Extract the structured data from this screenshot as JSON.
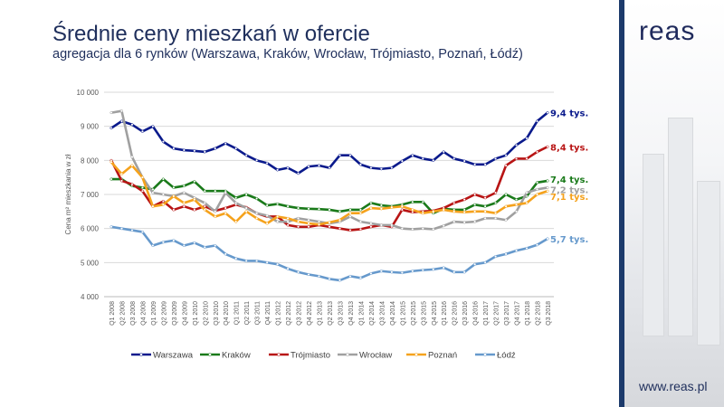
{
  "title": "Średnie ceny mieszkań w ofercie",
  "subtitle": "agregacja dla 6 rynków (Warszawa, Kraków, Wrocław, Trójmiasto, Poznań, Łódź)",
  "logo": "reas",
  "url": "www.reas.pl",
  "chart_data": {
    "type": "line",
    "ylabel": "Cena m² mieszkania w zł",
    "ylim": [
      4000,
      10000
    ],
    "yticks": [
      4000,
      5000,
      6000,
      7000,
      8000,
      9000,
      10000
    ],
    "ytick_labels": [
      "4 000",
      "5 000",
      "6 000",
      "7 000",
      "8 000",
      "9 000",
      "10 000"
    ],
    "grid": true,
    "legend": "bottom",
    "categories": [
      "Q1 2008",
      "Q2 2008",
      "Q3 2008",
      "Q4 2008",
      "Q1 2009",
      "Q2 2009",
      "Q3 2009",
      "Q4 2009",
      "Q1 2010",
      "Q2 2010",
      "Q3 2010",
      "Q4 2010",
      "Q1 2011",
      "Q2 2011",
      "Q3 2011",
      "Q4 2011",
      "Q1 2012",
      "Q2 2012",
      "Q3 2012",
      "Q4 2012",
      "Q1 2013",
      "Q2 2013",
      "Q3 2013",
      "Q4 2013",
      "Q1 2014",
      "Q2 2014",
      "Q3 2014",
      "Q4 2014",
      "Q1 2015",
      "Q2 2015",
      "Q3 2015",
      "Q4 2015",
      "Q1 2016",
      "Q2 2016",
      "Q3 2016",
      "Q4 2016",
      "Q1 2017",
      "Q2 2017",
      "Q3 2017",
      "Q4 2017",
      "Q1 2018",
      "Q2 2018",
      "Q3 2018"
    ],
    "series": [
      {
        "name": "Warszawa",
        "color": "#0a1a8c",
        "end_label": "9,4 tys.",
        "values": [
          8950,
          9150,
          9050,
          8850,
          9000,
          8550,
          8350,
          8300,
          8280,
          8250,
          8350,
          8500,
          8350,
          8150,
          8000,
          7920,
          7720,
          7780,
          7620,
          7820,
          7850,
          7780,
          8150,
          8150,
          7880,
          7780,
          7750,
          7780,
          7980,
          8150,
          8050,
          8000,
          8250,
          8050,
          7980,
          7880,
          7880,
          8050,
          8150,
          8450,
          8650,
          9150,
          9400
        ]
      },
      {
        "name": "Kraków",
        "color": "#1a7a1a",
        "end_label": "7,4 tys.",
        "values": [
          7450,
          7450,
          7250,
          7200,
          7150,
          7450,
          7200,
          7250,
          7380,
          7100,
          7100,
          7100,
          6900,
          7000,
          6880,
          6680,
          6720,
          6650,
          6600,
          6580,
          6570,
          6550,
          6500,
          6550,
          6550,
          6750,
          6680,
          6650,
          6700,
          6780,
          6780,
          6450,
          6580,
          6550,
          6550,
          6700,
          6650,
          6750,
          7000,
          6850,
          6950,
          7350,
          7400
        ]
      },
      {
        "name": "Trójmiasto",
        "color": "#b81414",
        "end_label": "8,4 tys.",
        "values": [
          8000,
          7400,
          7300,
          7100,
          6650,
          6800,
          6550,
          6650,
          6550,
          6650,
          6520,
          6600,
          6700,
          6620,
          6450,
          6350,
          6350,
          6100,
          6050,
          6050,
          6100,
          6050,
          6000,
          5950,
          5980,
          6050,
          6100,
          6050,
          6550,
          6480,
          6500,
          6520,
          6600,
          6750,
          6850,
          7000,
          6900,
          7050,
          7850,
          8050,
          8050,
          8250,
          8400
        ]
      },
      {
        "name": "Wrocław",
        "color": "#a0a0a0",
        "end_label": "7,2 tys.",
        "values": [
          9400,
          9450,
          8100,
          7500,
          7050,
          7000,
          6950,
          7050,
          6900,
          6750,
          6500,
          7050,
          6750,
          6600,
          6450,
          6380,
          6200,
          6200,
          6300,
          6250,
          6200,
          6150,
          6200,
          6350,
          6200,
          6150,
          6100,
          6100,
          6000,
          5980,
          6000,
          5980,
          6080,
          6200,
          6180,
          6200,
          6300,
          6300,
          6250,
          6500,
          7050,
          7150,
          7200
        ]
      },
      {
        "name": "Poznań",
        "color": "#f5a21c",
        "end_label": "7,1 tys.",
        "values": [
          7950,
          7600,
          7850,
          7500,
          6650,
          6700,
          6950,
          6750,
          6850,
          6550,
          6350,
          6450,
          6200,
          6500,
          6300,
          6150,
          6350,
          6300,
          6200,
          6150,
          6120,
          6180,
          6250,
          6450,
          6450,
          6600,
          6580,
          6620,
          6650,
          6550,
          6450,
          6500,
          6550,
          6500,
          6480,
          6500,
          6500,
          6450,
          6650,
          6700,
          6750,
          7000,
          7100
        ]
      },
      {
        "name": "Łódź",
        "color": "#6699cc",
        "end_label": "5,7 tys.",
        "values": [
          6050,
          6000,
          5950,
          5900,
          5500,
          5600,
          5650,
          5500,
          5580,
          5450,
          5500,
          5250,
          5120,
          5050,
          5050,
          5000,
          4950,
          4820,
          4720,
          4650,
          4600,
          4520,
          4480,
          4600,
          4550,
          4680,
          4750,
          4720,
          4700,
          4750,
          4780,
          4800,
          4850,
          4720,
          4720,
          4950,
          5000,
          5180,
          5250,
          5350,
          5420,
          5520,
          5700
        ]
      }
    ]
  }
}
